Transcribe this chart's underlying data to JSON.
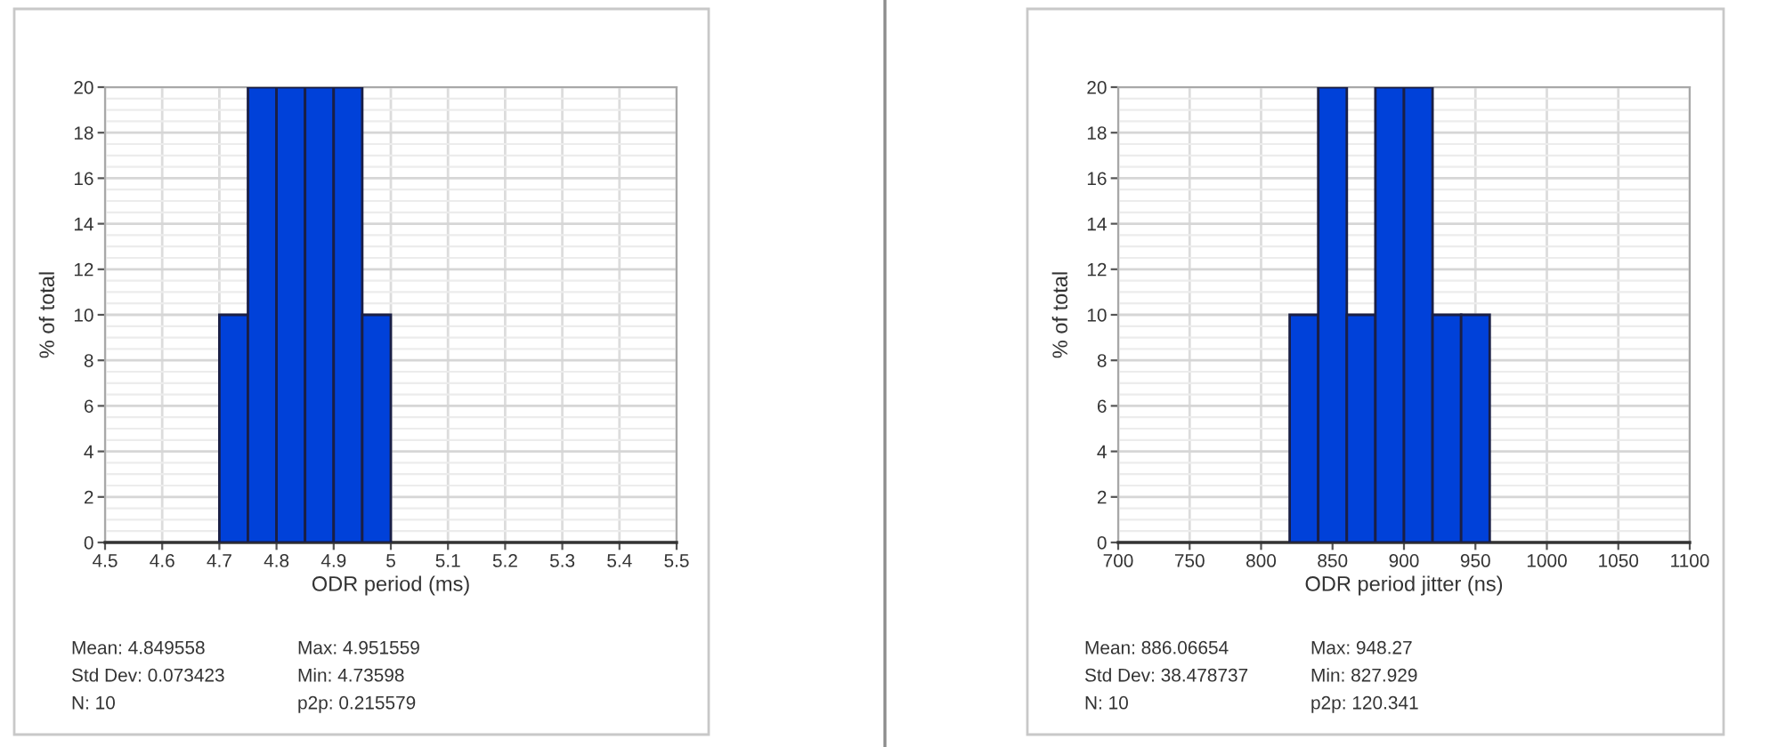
{
  "chart_data": [
    {
      "type": "histogram",
      "bins": [
        4.7,
        4.75,
        4.8,
        4.85,
        4.9,
        4.95,
        5
      ],
      "values": [
        10,
        20,
        20,
        20,
        20,
        10
      ],
      "color": "#0041d9",
      "xlabel": "ODR period (ms)",
      "ylabel": "% of total",
      "xlim": [
        4.5,
        5.5
      ],
      "ylim": [
        0,
        20
      ],
      "xticks": [
        4.5,
        4.6,
        4.7,
        4.8,
        4.9,
        5,
        5.1,
        5.2,
        5.3,
        5.4,
        5.5
      ],
      "yticks": [
        0,
        2,
        4,
        6,
        8,
        10,
        12,
        14,
        16,
        18,
        20
      ],
      "grid": true,
      "annotations": [
        "Mean: 4.849558",
        "Max: 4.951559",
        "Std Dev: 0.073423",
        "Min: 4.73598",
        "N: 10",
        "p2p: 0.215579"
      ]
    },
    {
      "type": "histogram",
      "bins": [
        820,
        840,
        860,
        880,
        900,
        920,
        940,
        960
      ],
      "values": [
        10,
        20,
        10,
        20,
        20,
        10,
        10
      ],
      "color": "#0041d9",
      "xlabel": "ODR period jitter (ns)",
      "ylabel": "% of total",
      "xlim": [
        700,
        1100
      ],
      "ylim": [
        0,
        20
      ],
      "xticks": [
        700,
        750,
        800,
        850,
        900,
        950,
        1000,
        1050,
        1100
      ],
      "yticks": [
        0,
        2,
        4,
        6,
        8,
        10,
        12,
        14,
        16,
        18,
        20
      ],
      "grid": true,
      "annotations": [
        "Mean: 886.06654",
        "Max: 948.27",
        "Std Dev: 38.478737",
        "Min: 827.929",
        "N: 10",
        "p2p: 120.341"
      ]
    }
  ]
}
